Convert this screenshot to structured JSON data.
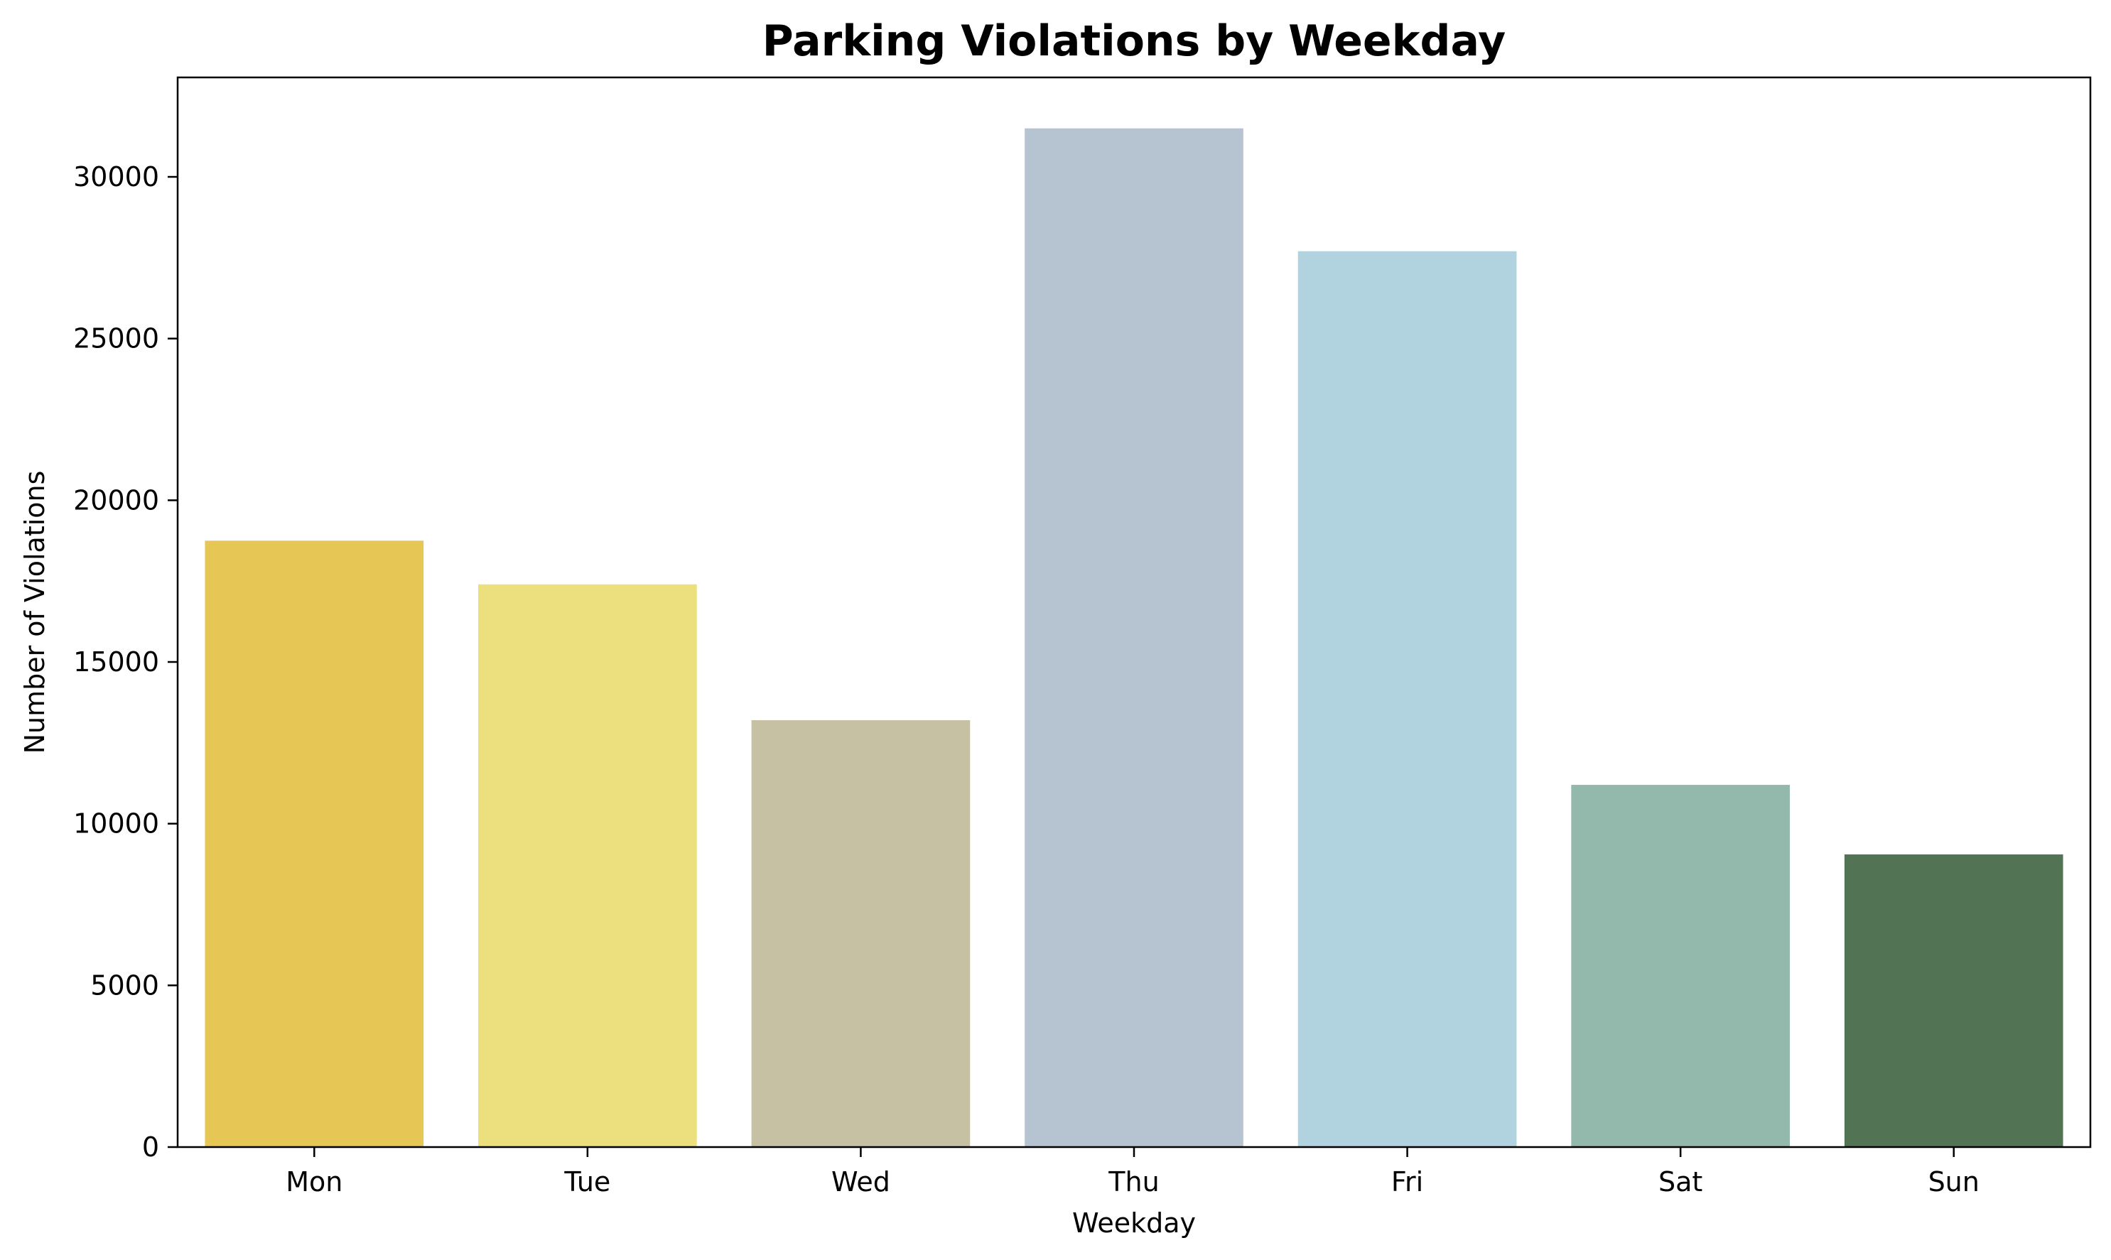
{
  "chart_data": {
    "type": "bar",
    "title": "Parking Violations by Weekday",
    "xlabel": "Weekday",
    "ylabel": "Number of Violations",
    "categories": [
      "Mon",
      "Tue",
      "Wed",
      "Thu",
      "Fri",
      "Sat",
      "Sun"
    ],
    "values": [
      18750,
      17400,
      13200,
      31500,
      27700,
      11200,
      9050
    ],
    "colors": [
      "#e6c654",
      "#ebe07d",
      "#c5c1a2",
      "#b5c4d0",
      "#b0d3df",
      "#93b9ac",
      "#537454"
    ],
    "yticks": [
      0,
      5000,
      10000,
      15000,
      20000,
      25000,
      30000
    ],
    "ylim": [
      0,
      33075
    ],
    "grid": false,
    "legend": false
  }
}
